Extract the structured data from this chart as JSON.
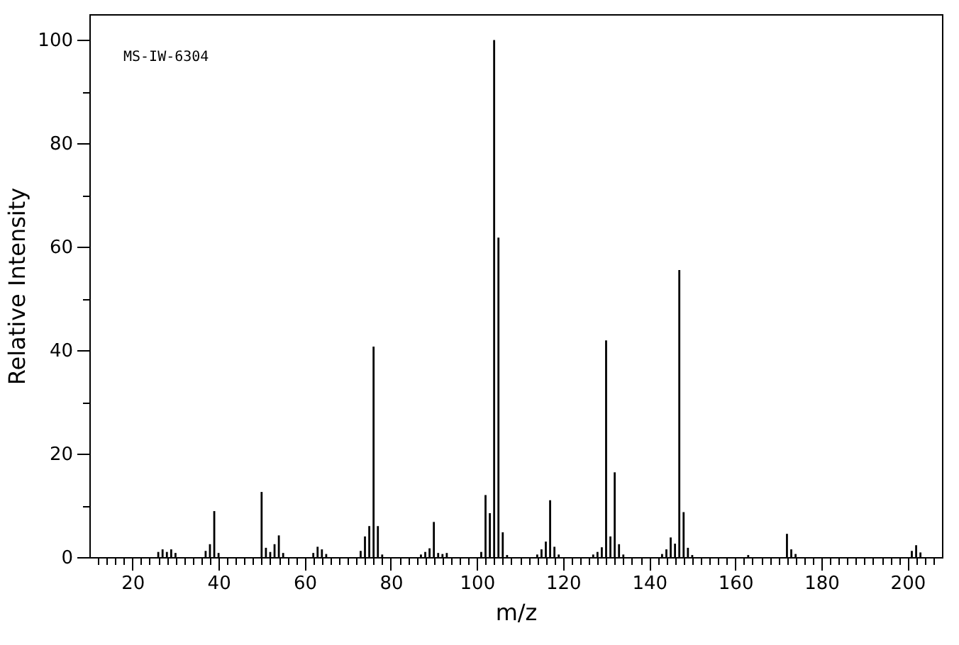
{
  "chart_data": {
    "type": "bar",
    "xlabel": "m/z",
    "ylabel": "Relative Intensity",
    "annotations": [
      "MS-IW-6304"
    ],
    "color": "#000000",
    "x": [
      26,
      27,
      28,
      29,
      30,
      37,
      38,
      39,
      40,
      50,
      51,
      52,
      53,
      54,
      55,
      62,
      63,
      64,
      65,
      73,
      74,
      75,
      76,
      77,
      78,
      87,
      88,
      89,
      90,
      91,
      92,
      93,
      101,
      102,
      103,
      104,
      105,
      106,
      107,
      114,
      115,
      116,
      117,
      118,
      119,
      127,
      128,
      129,
      130,
      131,
      132,
      133,
      134,
      143,
      144,
      145,
      146,
      147,
      148,
      149,
      150,
      163,
      172,
      173,
      174,
      201,
      202,
      203
    ],
    "values": [
      1.0,
      1.5,
      1.0,
      1.5,
      0.8,
      1.2,
      2.5,
      8.9,
      0.8,
      12.6,
      1.8,
      1.0,
      2.5,
      4.2,
      0.8,
      0.8,
      2.0,
      1.5,
      0.6,
      1.2,
      4.0,
      6.0,
      40.7,
      6.0,
      0.5,
      0.5,
      1.0,
      1.7,
      6.8,
      0.8,
      0.6,
      0.8,
      1.0,
      12.0,
      8.5,
      100,
      61.8,
      4.8,
      0.4,
      0.5,
      1.5,
      3.0,
      11.0,
      2.0,
      0.5,
      0.5,
      1.0,
      1.9,
      41.9,
      4.0,
      16.4,
      2.5,
      0.5,
      0.6,
      1.5,
      3.8,
      2.6,
      55.5,
      8.7,
      1.8,
      0.4,
      0.4,
      4.5,
      1.5,
      0.6,
      1.2,
      2.3,
      0.9
    ],
    "xlim": [
      10,
      208
    ],
    "ylim": [
      0,
      105
    ],
    "xticks": [
      {
        "value": 12,
        "label": null
      },
      {
        "value": 14,
        "label": null
      },
      {
        "value": 16,
        "label": null
      },
      {
        "value": 18,
        "label": null
      },
      20,
      {
        "value": 22,
        "label": null
      },
      {
        "value": 24,
        "label": null
      },
      {
        "value": 26,
        "label": null
      },
      {
        "value": 28,
        "label": null
      },
      {
        "value": 30,
        "label": null
      },
      {
        "value": 32,
        "label": null
      },
      {
        "value": 34,
        "label": null
      },
      {
        "value": 36,
        "label": null
      },
      {
        "value": 38,
        "label": null
      },
      40,
      {
        "value": 42,
        "label": null
      },
      {
        "value": 44,
        "label": null
      },
      {
        "value": 46,
        "label": null
      },
      {
        "value": 48,
        "label": null
      },
      {
        "value": 50,
        "label": null
      },
      {
        "value": 52,
        "label": null
      },
      {
        "value": 54,
        "label": null
      },
      {
        "value": 56,
        "label": null
      },
      {
        "value": 58,
        "label": null
      },
      60,
      {
        "value": 62,
        "label": null
      },
      {
        "value": 64,
        "label": null
      },
      {
        "value": 66,
        "label": null
      },
      {
        "value": 68,
        "label": null
      },
      {
        "value": 70,
        "label": null
      },
      {
        "value": 72,
        "label": null
      },
      {
        "value": 74,
        "label": null
      },
      {
        "value": 76,
        "label": null
      },
      {
        "value": 78,
        "label": null
      },
      80,
      {
        "value": 82,
        "label": null
      },
      {
        "value": 84,
        "label": null
      },
      {
        "value": 86,
        "label": null
      },
      {
        "value": 88,
        "label": null
      },
      {
        "value": 90,
        "label": null
      },
      {
        "value": 92,
        "label": null
      },
      {
        "value": 94,
        "label": null
      },
      {
        "value": 96,
        "label": null
      },
      {
        "value": 98,
        "label": null
      },
      100,
      {
        "value": 102,
        "label": null
      },
      {
        "value": 104,
        "label": null
      },
      {
        "value": 106,
        "label": null
      },
      {
        "value": 108,
        "label": null
      },
      {
        "value": 110,
        "label": null
      },
      {
        "value": 112,
        "label": null
      },
      {
        "value": 114,
        "label": null
      },
      {
        "value": 116,
        "label": null
      },
      {
        "value": 118,
        "label": null
      },
      120,
      {
        "value": 122,
        "label": null
      },
      {
        "value": 124,
        "label": null
      },
      {
        "value": 126,
        "label": null
      },
      {
        "value": 128,
        "label": null
      },
      {
        "value": 130,
        "label": null
      },
      {
        "value": 132,
        "label": null
      },
      {
        "value": 134,
        "label": null
      },
      {
        "value": 136,
        "label": null
      },
      {
        "value": 138,
        "label": null
      },
      140,
      {
        "value": 142,
        "label": null
      },
      {
        "value": 144,
        "label": null
      },
      {
        "value": 146,
        "label": null
      },
      {
        "value": 148,
        "label": null
      },
      {
        "value": 150,
        "label": null
      },
      {
        "value": 152,
        "label": null
      },
      {
        "value": 154,
        "label": null
      },
      {
        "value": 156,
        "label": null
      },
      {
        "value": 158,
        "label": null
      },
      160,
      {
        "value": 162,
        "label": null
      },
      {
        "value": 164,
        "label": null
      },
      {
        "value": 166,
        "label": null
      },
      {
        "value": 168,
        "label": null
      },
      {
        "value": 170,
        "label": null
      },
      {
        "value": 172,
        "label": null
      },
      {
        "value": 174,
        "label": null
      },
      {
        "value": 176,
        "label": null
      },
      {
        "value": 178,
        "label": null
      },
      180,
      {
        "value": 182,
        "label": null
      },
      {
        "value": 184,
        "label": null
      },
      {
        "value": 186,
        "label": null
      },
      {
        "value": 188,
        "label": null
      },
      {
        "value": 190,
        "label": null
      },
      {
        "value": 192,
        "label": null
      },
      {
        "value": 194,
        "label": null
      },
      {
        "value": 196,
        "label": null
      },
      {
        "value": 198,
        "label": null
      },
      200,
      {
        "value": 202,
        "label": null
      },
      {
        "value": 204,
        "label": null
      },
      {
        "value": 206,
        "label": null
      }
    ],
    "yticks": [
      0,
      {
        "value": 10,
        "label": null
      },
      20,
      {
        "value": 30,
        "label": null
      },
      40,
      {
        "value": 50,
        "label": null
      },
      60,
      {
        "value": 70,
        "label": null
      },
      80,
      {
        "value": 90,
        "label": null
      },
      100
    ],
    "grid": false
  }
}
